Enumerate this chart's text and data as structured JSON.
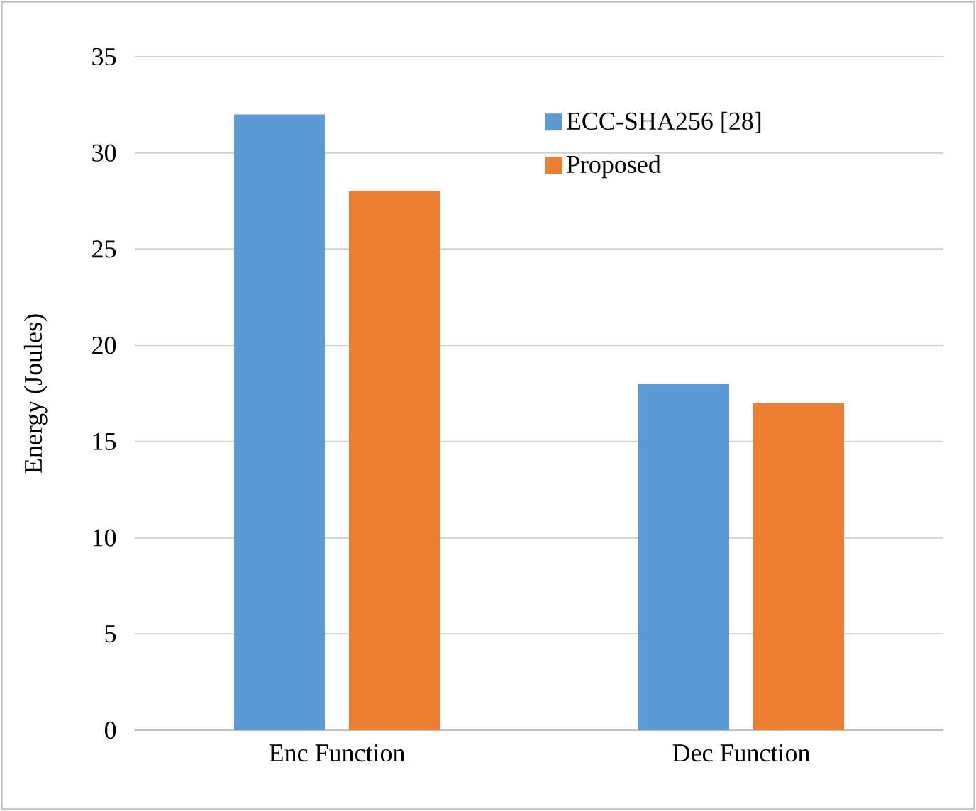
{
  "chart_data": {
    "type": "bar",
    "ylabel": "Energy (Joules)",
    "categories": [
      "Enc Function",
      "Dec Function"
    ],
    "series": [
      {
        "name": "ECC-SHA256 [28]",
        "color": "#5b9bd5",
        "values": [
          32,
          18
        ]
      },
      {
        "name": "Proposed",
        "color": "#ed7d31",
        "values": [
          28,
          17
        ]
      }
    ],
    "ylim": [
      0,
      35
    ],
    "yticks": [
      0,
      5,
      10,
      15,
      20,
      25,
      30,
      35
    ],
    "grid": "y",
    "legend": "top right"
  }
}
